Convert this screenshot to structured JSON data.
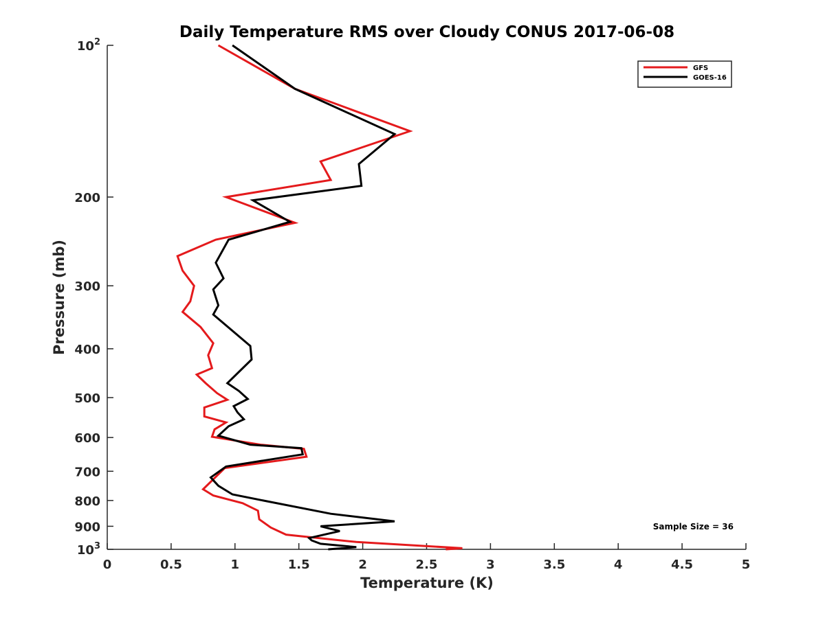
{
  "chart_data": {
    "type": "line",
    "title": "Daily Temperature RMS over Cloudy CONUS 2017-06-08",
    "xlabel": "Temperature (K)",
    "ylabel": "Pressure (mb)",
    "xlim": [
      0,
      5
    ],
    "ylim": [
      100,
      1000
    ],
    "y_scale": "log",
    "y_reversed": true,
    "grid": false,
    "legend_position": "top-right",
    "x_ticks": [
      "0",
      "0.5",
      "1",
      "1.5",
      "2",
      "2.5",
      "3",
      "3.5",
      "4",
      "4.5",
      "5"
    ],
    "y_ticks": [
      {
        "value": 100,
        "label": "10",
        "sup": "2"
      },
      {
        "value": 200,
        "label": "200",
        "sup": ""
      },
      {
        "value": 300,
        "label": "300",
        "sup": ""
      },
      {
        "value": 400,
        "label": "400",
        "sup": ""
      },
      {
        "value": 500,
        "label": "500",
        "sup": ""
      },
      {
        "value": 600,
        "label": "600",
        "sup": ""
      },
      {
        "value": 700,
        "label": "700",
        "sup": ""
      },
      {
        "value": 800,
        "label": "800",
        "sup": ""
      },
      {
        "value": 900,
        "label": "900",
        "sup": ""
      },
      {
        "value": 1000,
        "label": "10",
        "sup": "3"
      }
    ],
    "annotation": "Sample Size = 36",
    "series": [
      {
        "name": "GFS",
        "color": "#e41a1c",
        "points": [
          [
            0.87,
            100
          ],
          [
            1.47,
            122
          ],
          [
            2.37,
            148
          ],
          [
            1.67,
            170
          ],
          [
            1.75,
            185
          ],
          [
            0.93,
            200
          ],
          [
            1.47,
            225
          ],
          [
            0.85,
            243
          ],
          [
            0.55,
            262
          ],
          [
            0.59,
            280
          ],
          [
            0.68,
            300
          ],
          [
            0.65,
            322
          ],
          [
            0.59,
            338
          ],
          [
            0.73,
            362
          ],
          [
            0.83,
            390
          ],
          [
            0.79,
            412
          ],
          [
            0.82,
            437
          ],
          [
            0.7,
            450
          ],
          [
            0.77,
            468
          ],
          [
            0.86,
            490
          ],
          [
            0.94,
            505
          ],
          [
            0.76,
            523
          ],
          [
            0.76,
            545
          ],
          [
            0.93,
            560
          ],
          [
            0.84,
            578
          ],
          [
            0.82,
            598
          ],
          [
            1.2,
            620
          ],
          [
            1.54,
            632
          ],
          [
            1.56,
            655
          ],
          [
            0.92,
            690
          ],
          [
            0.75,
            760
          ],
          [
            0.83,
            782
          ],
          [
            1.06,
            810
          ],
          [
            1.18,
            838
          ],
          [
            1.19,
            872
          ],
          [
            1.28,
            905
          ],
          [
            1.4,
            935
          ],
          [
            1.95,
            967
          ],
          [
            2.78,
            995
          ],
          [
            2.65,
            1000
          ]
        ]
      },
      {
        "name": "GOES-16",
        "color": "#000000",
        "points": [
          [
            0.98,
            100
          ],
          [
            1.47,
            122
          ],
          [
            2.25,
            150
          ],
          [
            1.97,
            172
          ],
          [
            1.99,
            190
          ],
          [
            1.14,
            203
          ],
          [
            1.43,
            224
          ],
          [
            0.95,
            243
          ],
          [
            0.85,
            270
          ],
          [
            0.91,
            290
          ],
          [
            0.83,
            305
          ],
          [
            0.87,
            328
          ],
          [
            0.83,
            342
          ],
          [
            1.12,
            395
          ],
          [
            1.13,
            420
          ],
          [
            0.94,
            468
          ],
          [
            1.03,
            485
          ],
          [
            1.1,
            503
          ],
          [
            0.99,
            520
          ],
          [
            1.02,
            535
          ],
          [
            1.07,
            552
          ],
          [
            0.95,
            570
          ],
          [
            0.87,
            595
          ],
          [
            1.12,
            620
          ],
          [
            1.52,
            630
          ],
          [
            1.53,
            648
          ],
          [
            0.93,
            685
          ],
          [
            0.81,
            720
          ],
          [
            0.87,
            748
          ],
          [
            0.98,
            778
          ],
          [
            1.22,
            800
          ],
          [
            1.75,
            850
          ],
          [
            2.25,
            880
          ],
          [
            1.67,
            900
          ],
          [
            1.82,
            920
          ],
          [
            1.58,
            950
          ],
          [
            1.6,
            960
          ],
          [
            1.67,
            975
          ],
          [
            1.95,
            990
          ],
          [
            1.73,
            1000
          ]
        ]
      }
    ]
  }
}
